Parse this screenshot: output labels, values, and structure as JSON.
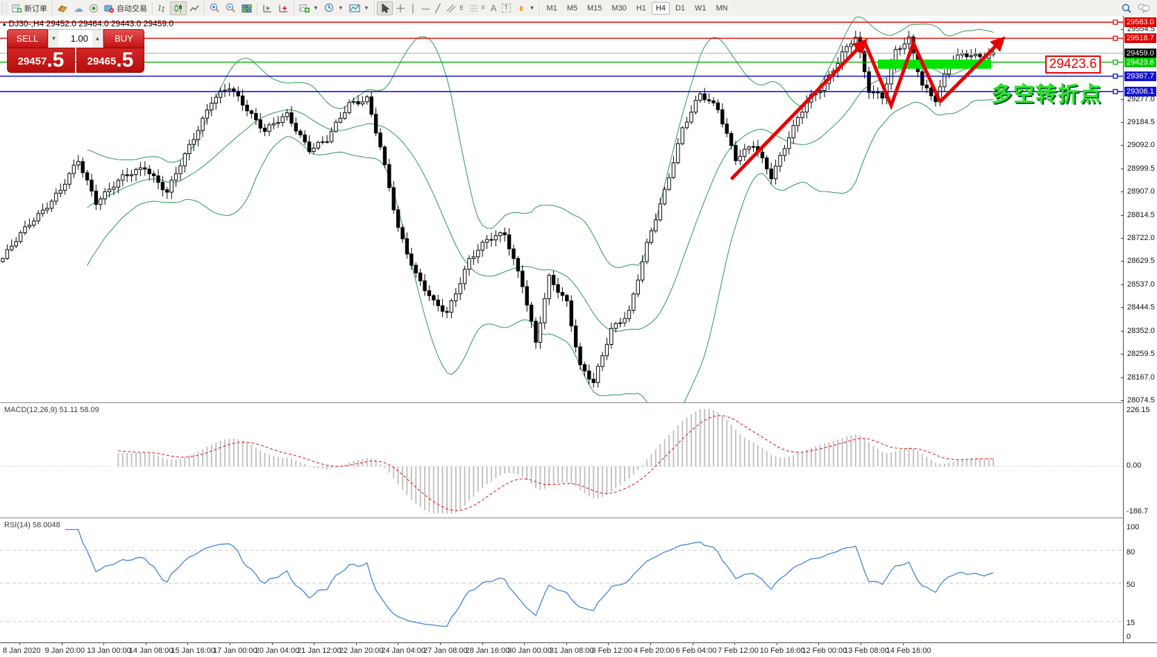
{
  "toolbar": {
    "new_order_label": "新订单",
    "autotrading_label": "自动交易",
    "icons_left": [
      "new-order-icon",
      "book-icon",
      "cloud-icon",
      "signal-icon",
      "autotrading-icon"
    ],
    "chart_type_icons": [
      "bar-chart-icon",
      "candlestick-chart-icon",
      "line-chart-icon"
    ],
    "zoom_icons": [
      "zoom-in-icon",
      "zoom-out-icon",
      "tile-windows-icon"
    ],
    "scroll_icons": [
      "auto-scroll-icon",
      "chart-shift-icon"
    ],
    "dropdown_tools": [
      "indicators-icon",
      "periods-icon",
      "templates-icon"
    ],
    "draw_tools": [
      "cursor-icon",
      "crosshair-icon",
      "vertical-line-icon",
      "horizontal-line-icon",
      "trendline-icon",
      "channel-icon",
      "fibonacci-icon",
      "text-icon",
      "text-label-icon",
      "arrows-icon"
    ],
    "timeframes": [
      "M1",
      "M5",
      "M15",
      "M30",
      "H1",
      "H4",
      "D1",
      "W1",
      "MN"
    ],
    "active_timeframe": "H4",
    "right_icons": [
      "search-icon",
      "chat-icon"
    ]
  },
  "chart": {
    "collapse_glyph": "▴",
    "title": "DJ30-,H4  29452.0 29464.0 29443.0 29459.0",
    "symbol": "DJ30-",
    "period": "H4"
  },
  "one_click": {
    "sell_label": "SELL",
    "buy_label": "BUY",
    "volume": "1.00",
    "spin_down": "▼",
    "spin_up": "▲",
    "sell_price_main": "29457",
    "sell_price_big": ".5",
    "buy_price_main": "29465",
    "buy_price_big": ".5"
  },
  "annotations": {
    "callout_price": "29423.6",
    "cn_text": "多空转折点"
  },
  "macd": {
    "label": "MACD(12,26,9) 51.11 58.09",
    "axis_labels": [
      "226.15",
      "0.00",
      "-186.7"
    ]
  },
  "rsi": {
    "label": "RSI(14) 58.0048",
    "axis_labels": [
      "100",
      "80",
      "50",
      "15",
      "0"
    ]
  },
  "chart_data": {
    "type": "candlestick",
    "symbol": "DJ30-",
    "timeframe": "H4",
    "ohlc_display": {
      "open": 29452.0,
      "high": 29464.0,
      "low": 29443.0,
      "close": 29459.0
    },
    "ylim": [
      28074.5,
      29583.0
    ],
    "candle_count": 224,
    "price_path": [
      [
        0,
        28640
      ],
      [
        6,
        28780
      ],
      [
        13,
        28910
      ],
      [
        17,
        29030
      ],
      [
        21,
        28870
      ],
      [
        27,
        28960
      ],
      [
        32,
        29010
      ],
      [
        37,
        28900
      ],
      [
        42,
        29090
      ],
      [
        47,
        29270
      ],
      [
        51,
        29320
      ],
      [
        55,
        29240
      ],
      [
        59,
        29150
      ],
      [
        64,
        29210
      ],
      [
        69,
        29080
      ],
      [
        73,
        29110
      ],
      [
        78,
        29260
      ],
      [
        82,
        29280
      ],
      [
        85,
        29080
      ],
      [
        89,
        28760
      ],
      [
        93,
        28580
      ],
      [
        97,
        28460
      ],
      [
        100,
        28420
      ],
      [
        105,
        28640
      ],
      [
        109,
        28710
      ],
      [
        113,
        28740
      ],
      [
        117,
        28540
      ],
      [
        120,
        28300
      ],
      [
        123,
        28560
      ],
      [
        127,
        28470
      ],
      [
        130,
        28210
      ],
      [
        133,
        28140
      ],
      [
        137,
        28360
      ],
      [
        141,
        28430
      ],
      [
        145,
        28690
      ],
      [
        149,
        28910
      ],
      [
        153,
        29160
      ],
      [
        157,
        29290
      ],
      [
        161,
        29240
      ],
      [
        165,
        29040
      ],
      [
        169,
        29090
      ],
      [
        173,
        28970
      ],
      [
        177,
        29130
      ],
      [
        181,
        29260
      ],
      [
        185,
        29340
      ],
      [
        189,
        29460
      ],
      [
        192,
        29520
      ],
      [
        195,
        29310
      ],
      [
        198,
        29290
      ],
      [
        201,
        29470
      ],
      [
        204,
        29510
      ],
      [
        207,
        29330
      ],
      [
        210,
        29280
      ],
      [
        213,
        29420
      ],
      [
        216,
        29450
      ],
      [
        219,
        29445
      ],
      [
        223,
        29459
      ]
    ],
    "price_axis_plain_ticks": [
      29554.5,
      29277.0,
      29184.5,
      29092.0,
      28999.5,
      28907.0,
      28814.5,
      28722.0,
      28629.5,
      28537.0,
      28444.5,
      28352.0,
      28259.5,
      28167.0,
      28074.5
    ],
    "price_axis_badges": [
      {
        "value": 29583.0,
        "color": "red"
      },
      {
        "value": 29518.7,
        "color": "red"
      },
      {
        "value": 29459.0,
        "color": "black"
      },
      {
        "value": 29423.6,
        "color": "green"
      },
      {
        "value": 29367.7,
        "color": "blue"
      },
      {
        "value": 29306.1,
        "color": "blue"
      }
    ],
    "horizontal_levels": [
      {
        "price": 29583.0,
        "color": "#e60000",
        "width": 1.4
      },
      {
        "price": 29518.7,
        "color": "#e60000",
        "width": 1.4
      },
      {
        "price": 29459.0,
        "color": "#a8a8a8",
        "width": 1.0
      },
      {
        "price": 29423.6,
        "color": "#00b400",
        "width": 1.4
      },
      {
        "price": 29367.7,
        "color": "#0000d2",
        "width": 1.4
      },
      {
        "price": 29306.1,
        "color": "#0000d2",
        "width": 1.4
      }
    ],
    "bollinger": {
      "period": 20,
      "deviation": 2,
      "color": "#3aa05c"
    },
    "macd": {
      "fast": 12,
      "slow": 26,
      "signal": 9,
      "display_main": 51.11,
      "display_signal": 58.09,
      "axis_max": 226.15,
      "axis_min": -186.7
    },
    "rsi": {
      "period": 14,
      "display_value": 58.0048,
      "levels": [
        80,
        50,
        15
      ],
      "axis": [
        100,
        0
      ]
    },
    "trend_arrows": [
      {
        "points": [
          [
            164,
            28957
          ],
          [
            194,
            29505
          ]
        ],
        "head": true
      },
      {
        "points": [
          [
            194,
            29505
          ],
          [
            200,
            29251
          ],
          [
            205,
            29500
          ],
          [
            211,
            29265
          ]
        ],
        "head": false
      },
      {
        "points": [
          [
            211,
            29265
          ],
          [
            225,
            29514
          ]
        ],
        "head": true
      }
    ],
    "highlight_rect": {
      "from_index": 197,
      "to_index": 222.5,
      "price_top": 29434,
      "price_bottom": 29397,
      "color": "#00e400"
    },
    "time_labels": [
      "8 Jan 2020",
      "9 Jan 20:00",
      "13 Jan 00:00",
      "14 Jan 08:00",
      "15 Jan 16:00",
      "17 Jan 00:00",
      "20 Jan 04:00",
      "21 Jan 12:00",
      "22 Jan 20:00",
      "24 Jan 04:00",
      "27 Jan 08:00",
      "28 Jan 16:00",
      "30 Jan 00:00",
      "31 Jan 08:00",
      "3 Feb 12:00",
      "4 Feb 20:00",
      "6 Feb 04:00",
      "7 Feb 12:00",
      "10 Feb 16:00",
      "12 Feb 00:00",
      "13 Feb 08:00",
      "14 Feb 16:00"
    ],
    "colors": {
      "bull": "#ffffff",
      "bear": "#000000",
      "wick": "#000000",
      "macd_bars": "#bdbdbd",
      "macd_signal": "#e03030",
      "rsi_line": "#3e83d6",
      "arrow": "#e60000"
    }
  }
}
